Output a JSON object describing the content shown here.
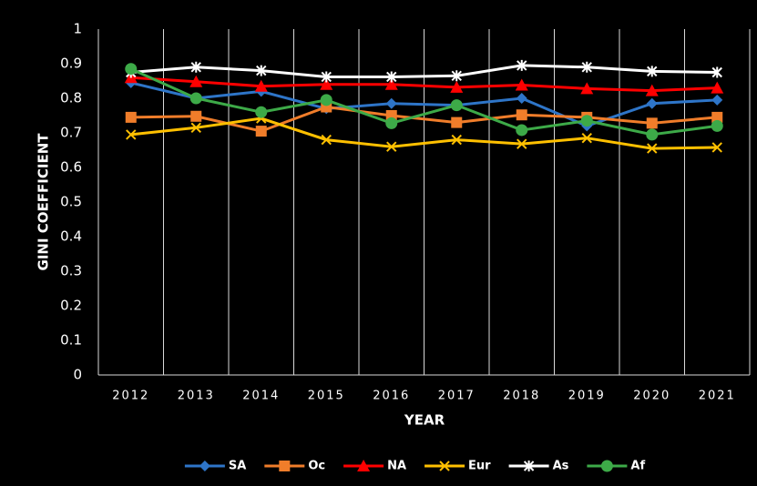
{
  "chart_data": {
    "type": "line",
    "xlabel": "YEAR",
    "ylabel": "GINI COEFFICIENT",
    "categories": [
      "2012",
      "2013",
      "2014",
      "2015",
      "2016",
      "2017",
      "2018",
      "2019",
      "2020",
      "2021"
    ],
    "ylim": [
      0,
      1
    ],
    "yticks": [
      0,
      0.1,
      0.2,
      0.3,
      0.4,
      0.5,
      0.6,
      0.7,
      0.8,
      0.9,
      1
    ],
    "legend": "bottom",
    "series": [
      {
        "name": "SA",
        "color": "#2e75c8",
        "marker": "diamond",
        "values": [
          0.845,
          0.8,
          0.82,
          0.77,
          0.785,
          0.78,
          0.8,
          0.72,
          0.785,
          0.795
        ]
      },
      {
        "name": "Oc",
        "color": "#f07d2a",
        "marker": "square",
        "values": [
          0.745,
          0.748,
          0.705,
          0.775,
          0.75,
          0.73,
          0.752,
          0.745,
          0.728,
          0.745
        ]
      },
      {
        "name": "NA",
        "color": "#ff0000",
        "marker": "triangle",
        "values": [
          0.86,
          0.848,
          0.835,
          0.84,
          0.84,
          0.832,
          0.838,
          0.828,
          0.822,
          0.83
        ]
      },
      {
        "name": "Eur",
        "color": "#ffc000",
        "marker": "x",
        "values": [
          0.695,
          0.715,
          0.742,
          0.68,
          0.66,
          0.68,
          0.668,
          0.685,
          0.655,
          0.658
        ]
      },
      {
        "name": "As",
        "color": "#ffffff",
        "marker": "star",
        "values": [
          0.875,
          0.89,
          0.88,
          0.862,
          0.862,
          0.865,
          0.895,
          0.89,
          0.878,
          0.875
        ]
      },
      {
        "name": "Af",
        "color": "#3daa48",
        "marker": "circle",
        "values": [
          0.885,
          0.8,
          0.76,
          0.795,
          0.728,
          0.78,
          0.708,
          0.735,
          0.695,
          0.72
        ]
      }
    ]
  }
}
